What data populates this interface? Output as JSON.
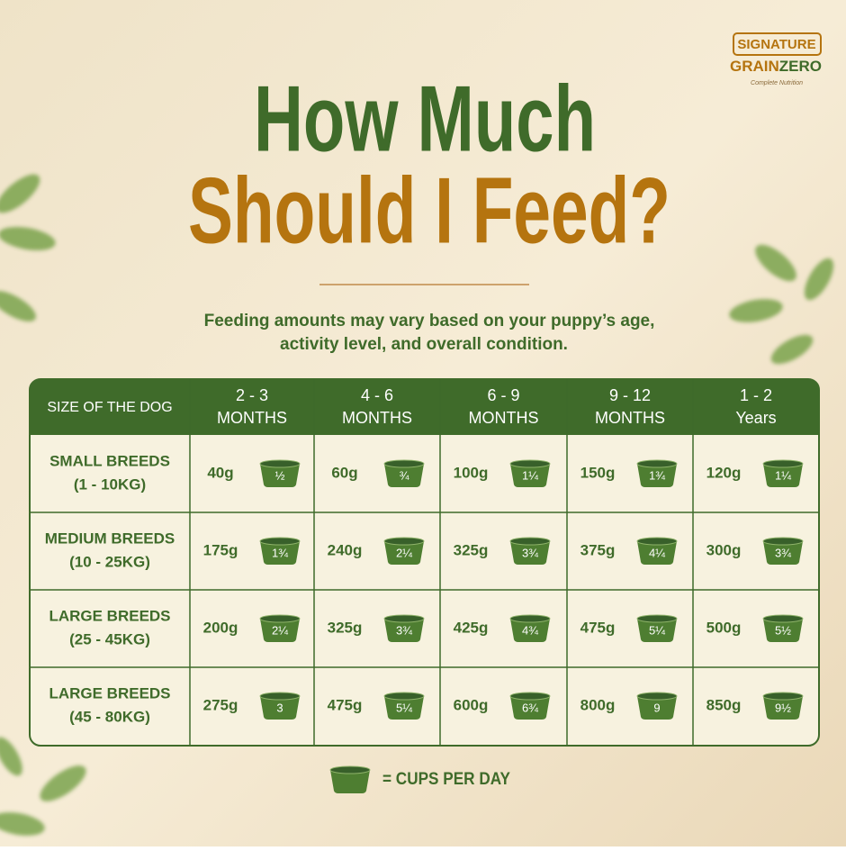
{
  "logo": {
    "badge": "SIGNATURE",
    "brand_a": "GRAIN",
    "brand_b": "ZERO",
    "tagline": "Complete Nutrition"
  },
  "title": {
    "line1": "How Much",
    "line2": "Should I Feed?"
  },
  "subtitle": [
    "Feeding amounts may vary based on your puppy’s age,",
    "activity level, and overall condition."
  ],
  "table": {
    "header": [
      [
        "SIZE OF THE DOG"
      ],
      [
        "2 - 3",
        "MONTHS"
      ],
      [
        "4 - 6",
        "MONTHS"
      ],
      [
        "6 - 9",
        "MONTHS"
      ],
      [
        "9 - 12",
        "MONTHS"
      ],
      [
        "1 - 2",
        "Years"
      ]
    ],
    "rows": [
      {
        "size": [
          "SMALL BREEDS",
          "(1 - 10KG)"
        ],
        "cells": [
          {
            "grams": "40g",
            "cups": "½"
          },
          {
            "grams": "60g",
            "cups": "¾"
          },
          {
            "grams": "100g",
            "cups": "1¼"
          },
          {
            "grams": "150g",
            "cups": "1¾"
          },
          {
            "grams": "120g",
            "cups": "1¼"
          }
        ]
      },
      {
        "size": [
          "MEDIUM BREEDS",
          "(10 - 25KG)"
        ],
        "cells": [
          {
            "grams": "175g",
            "cups": "1¾"
          },
          {
            "grams": "240g",
            "cups": "2¼"
          },
          {
            "grams": "325g",
            "cups": "3¾"
          },
          {
            "grams": "375g",
            "cups": "4¼"
          },
          {
            "grams": "300g",
            "cups": "3¾"
          }
        ]
      },
      {
        "size": [
          "LARGE BREEDS",
          "(25 - 45KG)"
        ],
        "cells": [
          {
            "grams": "200g",
            "cups": "2¼"
          },
          {
            "grams": "325g",
            "cups": "3¾"
          },
          {
            "grams": "425g",
            "cups": "4¾"
          },
          {
            "grams": "475g",
            "cups": "5¼"
          },
          {
            "grams": "500g",
            "cups": "5½"
          }
        ]
      },
      {
        "size": [
          "LARGE BREEDS",
          "(45 - 80KG)"
        ],
        "cells": [
          {
            "grams": "275g",
            "cups": "3"
          },
          {
            "grams": "475g",
            "cups": "5¼"
          },
          {
            "grams": "600g",
            "cups": "6¾"
          },
          {
            "grams": "800g",
            "cups": "9"
          },
          {
            "grams": "850g",
            "cups": "9½"
          }
        ]
      }
    ]
  },
  "legend": "= CUPS PER DAY"
}
